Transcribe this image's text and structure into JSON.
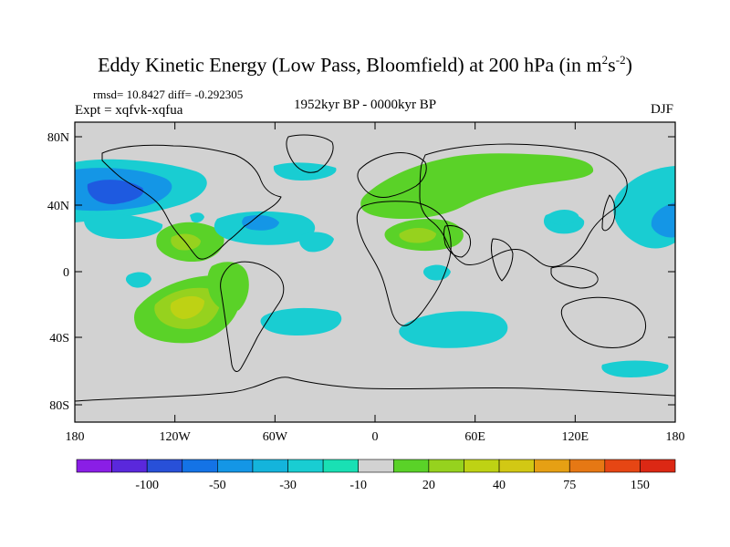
{
  "title": {
    "text": "Eddy Kinetic Energy (Low Pass, Bloomfield) at 200 hPa (in m",
    "sup1": "2",
    "mid": "s",
    "sup2": "-2",
    "end": ")"
  },
  "stats_line": "rmsd= 10.8427 diff= -0.292305",
  "experiment_line": "Expt = xqfvk-xqfua",
  "period_line": "1952kyr BP - 0000kyr BP",
  "season": "DJF",
  "map": {
    "lat_ticks": [
      "80N",
      "40N",
      "0",
      "40S",
      "80S"
    ],
    "lon_ticks": [
      "180",
      "120W",
      "60W",
      "0",
      "60E",
      "120E",
      "180"
    ]
  },
  "colorbar": {
    "colors": [
      "#8a1ee6",
      "#5a28dc",
      "#2850d8",
      "#1473e6",
      "#1496e6",
      "#14b4dc",
      "#19cdd2",
      "#19e0b4",
      "#d2d2d2",
      "#5ad228",
      "#96d21e",
      "#bed214",
      "#d2c814",
      "#e6a014",
      "#e67814",
      "#e64614",
      "#dc2814"
    ],
    "labels": [
      "-100",
      "-50",
      "-30",
      "-10",
      "20",
      "40",
      "75",
      "150"
    ]
  },
  "palette": {
    "background_gray": "#d2d2d2",
    "deep_blue": "#1e5ae0",
    "blue": "#1496e6",
    "cyan": "#19cdd2",
    "green": "#5ad228",
    "yellow_green": "#bed214"
  }
}
